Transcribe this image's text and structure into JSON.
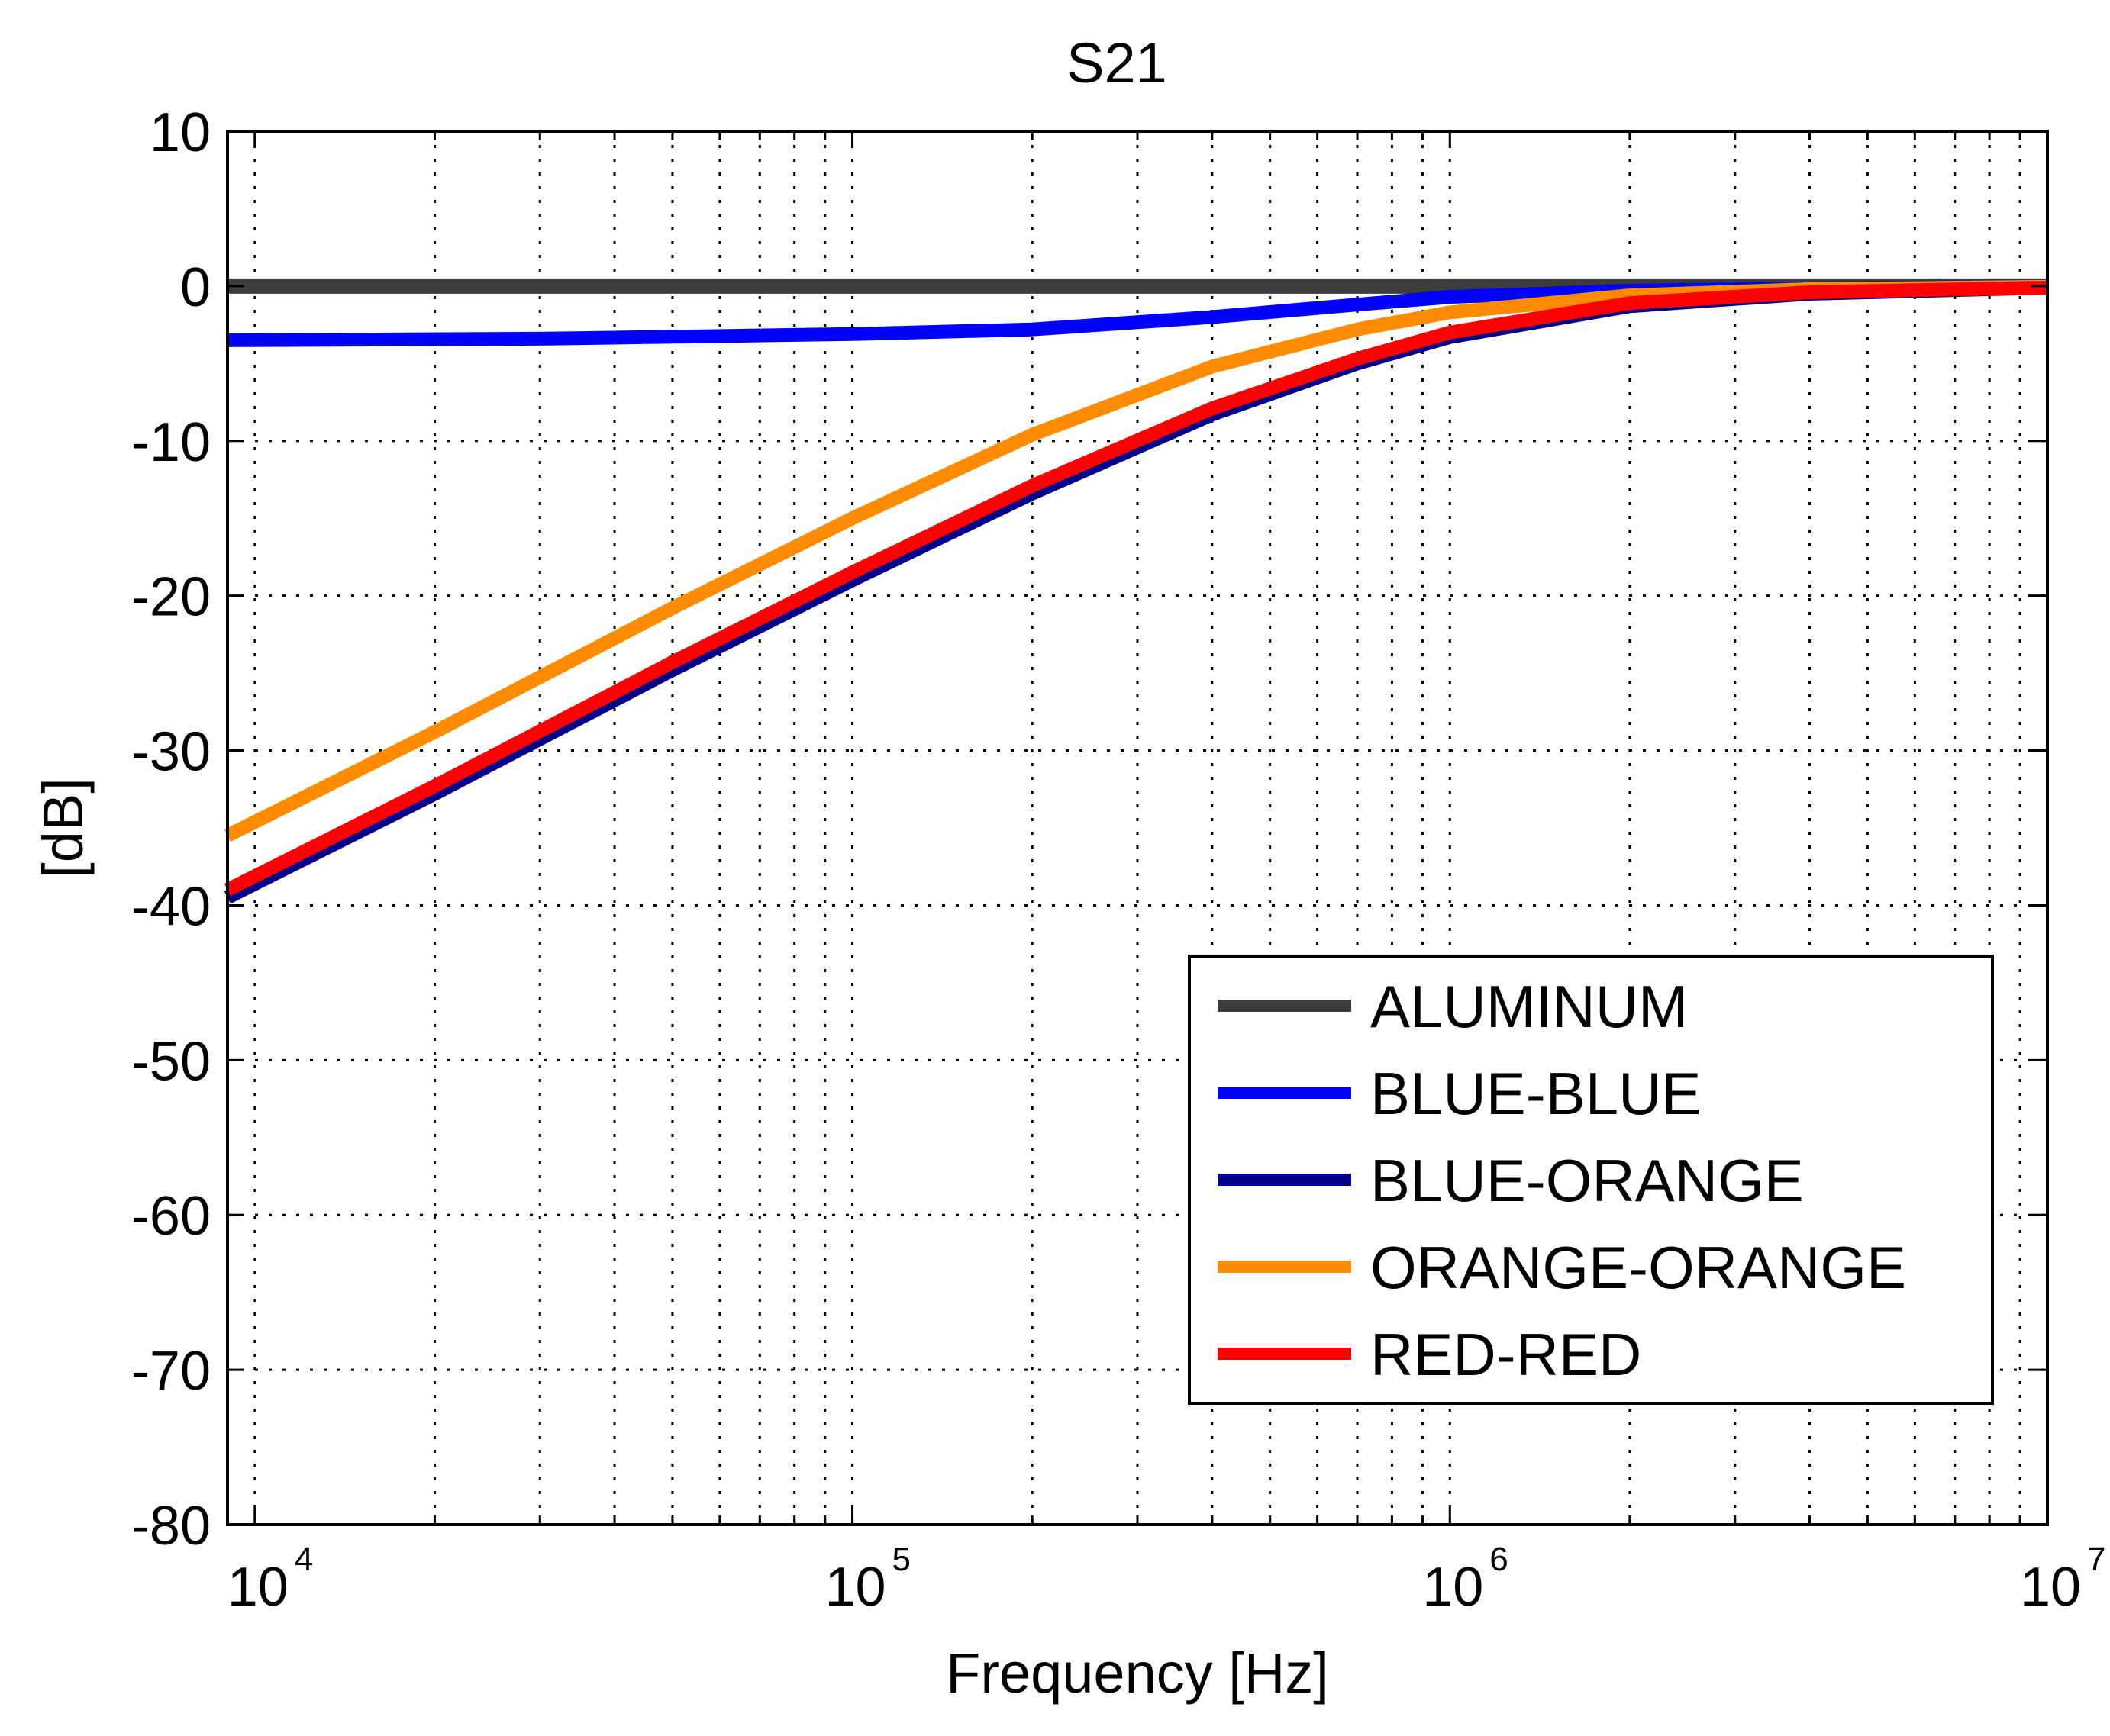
{
  "chart_data": {
    "type": "line",
    "title": "S21",
    "xlabel": "Frequency [Hz]",
    "ylabel": "[dB]",
    "xscale": "log",
    "xlim": [
      9000,
      10000000
    ],
    "ylim": [
      -80,
      10
    ],
    "grid": true,
    "legend_position": "lower-right",
    "yticks": [
      10,
      0,
      -10,
      -20,
      -30,
      -40,
      -50,
      -60,
      -70,
      -80
    ],
    "ytick_labels": [
      "10",
      "0",
      "-10",
      "-20",
      "-30",
      "-40",
      "-50",
      "-60",
      "-70",
      "-80"
    ],
    "xticks": [
      {
        "value": 10000,
        "base": "10",
        "exp": "4"
      },
      {
        "value": 100000,
        "base": "10",
        "exp": "5"
      },
      {
        "value": 1000000,
        "base": "10",
        "exp": "6"
      },
      {
        "value": 10000000,
        "base": "10",
        "exp": "7"
      }
    ],
    "series": [
      {
        "name": "ALUMINUM",
        "color": "#3c3c3c",
        "points": [
          [
            9000,
            0
          ],
          [
            10000000,
            0
          ]
        ]
      },
      {
        "name": "BLUE-BLUE",
        "color": "#0000ff",
        "points": [
          [
            9000,
            -3.5
          ],
          [
            30000,
            -3.4
          ],
          [
            100000,
            -3.1
          ],
          [
            200000,
            -2.8
          ],
          [
            400000,
            -2.0
          ],
          [
            700000,
            -1.2
          ],
          [
            1000000,
            -0.7
          ],
          [
            2000000,
            -0.3
          ],
          [
            4000000,
            -0.15
          ],
          [
            10000000,
            -0.05
          ]
        ]
      },
      {
        "name": "BLUE-ORANGE",
        "color": "#00008b",
        "points": [
          [
            9000,
            -39.5
          ],
          [
            20000,
            -32.8
          ],
          [
            50000,
            -24.8
          ],
          [
            100000,
            -19.0
          ],
          [
            200000,
            -13.4
          ],
          [
            400000,
            -8.3
          ],
          [
            700000,
            -5.0
          ],
          [
            1000000,
            -3.3
          ],
          [
            2000000,
            -1.3
          ],
          [
            4000000,
            -0.5
          ],
          [
            10000000,
            -0.1
          ]
        ]
      },
      {
        "name": "ORANGE-ORANGE",
        "color": "#ff8c00",
        "points": [
          [
            9000,
            -35.5
          ],
          [
            20000,
            -28.8
          ],
          [
            50000,
            -20.8
          ],
          [
            100000,
            -15.0
          ],
          [
            200000,
            -9.6
          ],
          [
            400000,
            -5.2
          ],
          [
            700000,
            -2.8
          ],
          [
            1000000,
            -1.7
          ],
          [
            2000000,
            -0.6
          ],
          [
            4000000,
            -0.2
          ],
          [
            10000000,
            -0.05
          ]
        ]
      },
      {
        "name": "RED-RED",
        "color": "#ff0000",
        "points": [
          [
            9000,
            -39.0
          ],
          [
            20000,
            -32.3
          ],
          [
            50000,
            -24.3
          ],
          [
            100000,
            -18.5
          ],
          [
            200000,
            -12.9
          ],
          [
            400000,
            -7.9
          ],
          [
            700000,
            -4.7
          ],
          [
            1000000,
            -3.0
          ],
          [
            2000000,
            -1.1
          ],
          [
            4000000,
            -0.4
          ],
          [
            10000000,
            -0.1
          ]
        ]
      }
    ]
  }
}
